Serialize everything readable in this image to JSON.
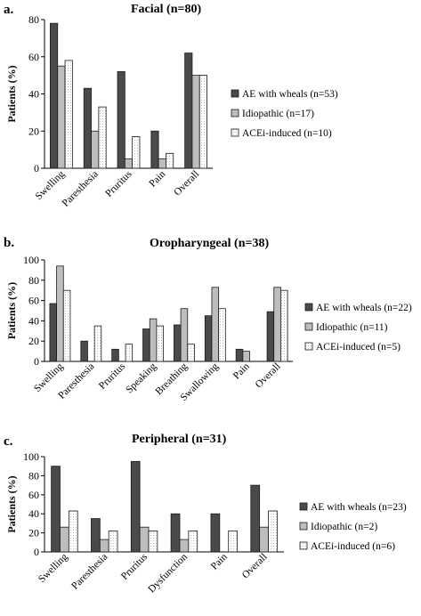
{
  "chart_data": [
    {
      "type": "bar",
      "panel": "a.",
      "title": "Facial (n=80)",
      "ylabel": "Patients (%)",
      "xlabel": "",
      "ylim": [
        0,
        80
      ],
      "yticks": [
        0,
        20,
        40,
        60,
        80
      ],
      "categories": [
        "Swelling",
        "Paresthesia",
        "Pruritus",
        "Pain",
        "Overall"
      ],
      "series": [
        {
          "name": "AE with wheals (n=53)",
          "values": [
            78,
            43,
            52,
            20,
            62
          ]
        },
        {
          "name": "Idiopathic (n=17)",
          "values": [
            55,
            20,
            5,
            5,
            50
          ]
        },
        {
          "name": "ACEi-induced (n=10)",
          "values": [
            58,
            33,
            17,
            8,
            50
          ]
        }
      ],
      "legend_position": "right"
    },
    {
      "type": "bar",
      "panel": "b.",
      "title": "Oropharyngeal (n=38)",
      "ylabel": "Patients (%)",
      "xlabel": "",
      "ylim": [
        0,
        100
      ],
      "yticks": [
        0,
        20,
        40,
        60,
        80,
        100
      ],
      "categories": [
        "Swelling",
        "Paresthesia",
        "Pruritus",
        "Speaking",
        "Breathing",
        "Swallowing",
        "Pain",
        "Overall"
      ],
      "series": [
        {
          "name": "AE with wheals (n=22)",
          "values": [
            57,
            20,
            12,
            32,
            36,
            45,
            12,
            49
          ]
        },
        {
          "name": "Idiopathic (n=11)",
          "values": [
            94,
            0,
            0,
            42,
            52,
            73,
            10,
            73
          ]
        },
        {
          "name": "ACEi-induced (n=5)",
          "values": [
            70,
            35,
            17,
            35,
            17,
            52,
            0,
            70
          ]
        }
      ],
      "legend_position": "right"
    },
    {
      "type": "bar",
      "panel": "c.",
      "title": "Peripheral (n=31)",
      "ylabel": "Patients (%)",
      "xlabel": "",
      "ylim": [
        0,
        100
      ],
      "yticks": [
        0,
        20,
        40,
        60,
        80,
        100
      ],
      "categories": [
        "Swelling",
        "Paresthesia",
        "Pruritus",
        "Dysfunction",
        "Pain",
        "Overall"
      ],
      "series": [
        {
          "name": "AE with wheals (n=23)",
          "values": [
            90,
            35,
            95,
            40,
            40,
            70
          ]
        },
        {
          "name": "Idiopathic (n=2)",
          "values": [
            26,
            13,
            26,
            13,
            0,
            26
          ]
        },
        {
          "name": "ACEi-induced (n=6)",
          "values": [
            43,
            22,
            22,
            22,
            22,
            43
          ]
        }
      ],
      "legend_position": "right"
    }
  ],
  "colors": {
    "series_fill": [
      "#4a4a4a",
      "#bdbdbd",
      "#ffffff"
    ],
    "stroke": "#1a1a1a"
  }
}
